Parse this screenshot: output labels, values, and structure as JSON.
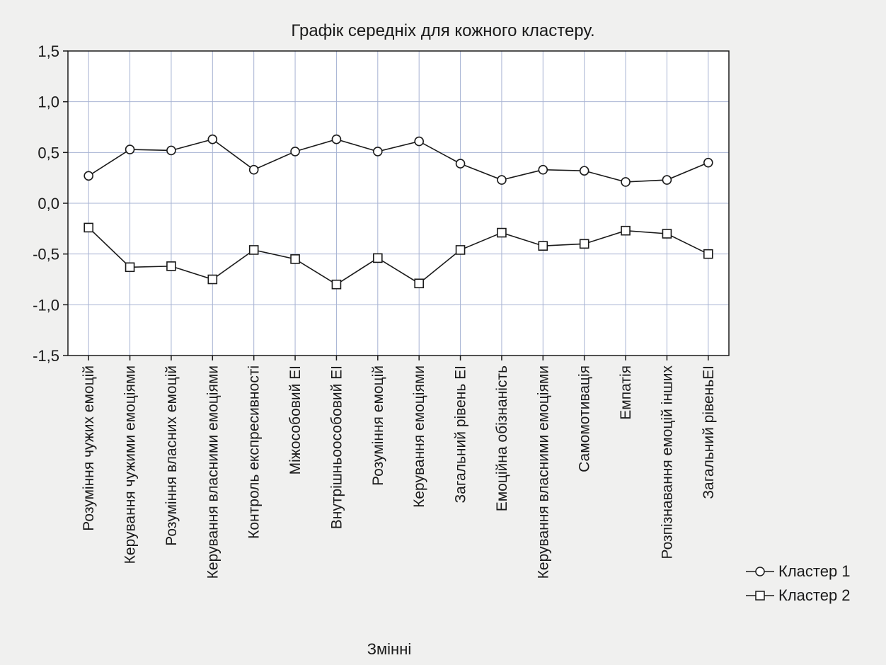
{
  "chart_data": {
    "type": "line",
    "title": "Графік середніх для кожного кластеру.",
    "xlabel": "Змінні",
    "ylabel": "",
    "ylim": [
      -1.5,
      1.5
    ],
    "yticks": [
      1.5,
      1.0,
      0.5,
      0.0,
      -0.5,
      -1.0,
      -1.5
    ],
    "ytick_labels": [
      "1,5",
      "1,0",
      "0,5",
      "0,0",
      "-0,5",
      "-1,0",
      "-1,5"
    ],
    "grid": true,
    "legend_position": "bottom-right",
    "categories": [
      "Розуміння чужих емоцій",
      "Керування чужими емоціями",
      "Розуміння власних емоцій",
      "Керування власними емоціями",
      "Контроль експресивності",
      "Міжособовий ЕІ",
      "Внутрішньоособовий ЕІ",
      "Розуміння емоцій",
      "Керування емоціями",
      "Загальний рівень ЕІ",
      "Емоційна обізнаність",
      "Керування власними емоціями",
      "Самомотивація",
      "Емпатія",
      "Розпізнавання емоцій інших",
      "Загальний рівеньЕІ"
    ],
    "series": [
      {
        "name": "Кластер  1",
        "marker": "circle",
        "values": [
          0.27,
          0.53,
          0.52,
          0.63,
          0.33,
          0.51,
          0.63,
          0.51,
          0.61,
          0.39,
          0.23,
          0.33,
          0.32,
          0.21,
          0.23,
          0.4
        ]
      },
      {
        "name": "Кластер  2",
        "marker": "square",
        "values": [
          -0.24,
          -0.63,
          -0.62,
          -0.75,
          -0.46,
          -0.55,
          -0.8,
          -0.54,
          -0.79,
          -0.46,
          -0.29,
          -0.42,
          -0.4,
          -0.27,
          -0.3,
          -0.5
        ]
      }
    ]
  },
  "colors": {
    "background": "#f0f0ef",
    "plot_background": "#ffffff",
    "grid": "#a7b3d3",
    "line": "#1a1a1a"
  }
}
